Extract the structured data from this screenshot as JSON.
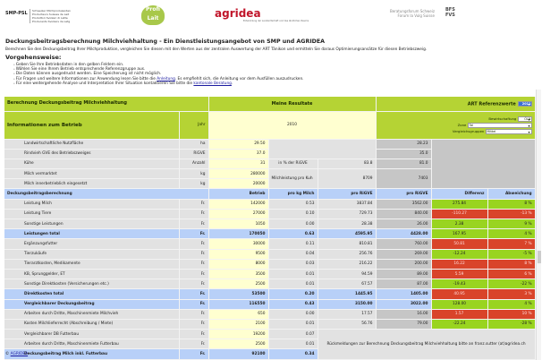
{
  "logos": {
    "snp": "SMP-PSL",
    "snp_sub": [
      "Schweizer Milchproduzenten",
      "Producteurs Suisses de Lait",
      "Produttori Svizzeri di Latte",
      "Producents Svizzers da Latg"
    ],
    "profi": "Profi Lait",
    "agridea": "agridea",
    "agridea_sub": "Entwicklung der Landwirtschaft und des ländlichen Raums",
    "bfs": [
      "Beratungsforum Schweiz",
      "Forum la Vulg Suisse"
    ],
    "bfs_abbr": [
      "BFS",
      "FVS"
    ]
  },
  "title": "Deckungsbeitragsberechnung Milchviehhaltung - Ein Dienstleistungsangebot von SMP und AGRIDEA",
  "description": "Berechnen Sie den Deckungsbeitrag Ihrer Milchproduktion, vergleichen Sie diesen mit den Werten aus der zentralen Auswertung der ART Tänikon und ermitteln Sie daraus Optimierungsansätze für diesen Betriebszweig.",
  "procedure_title": "Vorgehensweise:",
  "bullets": [
    "Geben Sie Ihre Betriebsdaten in den gelben Feldern ein.",
    "Wählen Sie eine Ihrem Betrieb entsprechende Referenzgruppe aus.",
    "Die Daten können ausgedruckt werden. Eine Speicherung ist nicht möglich."
  ],
  "bullet4": {
    "pre": "Für Fragen und weitere Informationen zur Anwendung lesen Sie bitte die ",
    "link": "Anleitung",
    "post": ". Es empfiehlt sich, die Anleitung vor dem Ausfüllen auszudrucken."
  },
  "bullet5": {
    "pre": "Für eine weitergehende Analyse und Interpretation Ihrer Situation kontaktieren Sie bitte die ",
    "link": "kantonale Beratung",
    "post": "."
  },
  "table": {
    "section_title": "Berechnung Deckungsbeitrag Milchviehhaltung",
    "my_results": "Meine Resultate",
    "art_ref": "ART Referenzwerte",
    "art_year": "2011",
    "info_title": "Informationen zum Betrieb",
    "jahr_label": "Jahr",
    "jahr_value": "2010",
    "bewirtschaftung_label": "Bewirtschaftung",
    "bewirtschaftung": "ÖLN",
    "zone_label": "Zone",
    "zone": "Tal",
    "vergleich_label": "Vergleichsgruppen",
    "vergleich": "Mittel",
    "info_rows": [
      {
        "label": "Landwirtschaftliche Nutzfläche",
        "unit": "ha",
        "value": "29.50",
        "ref": "28.23"
      },
      {
        "label": "Rindvieh GVE des Betriebszweiges",
        "unit": "RiGVE",
        "value": "37.0",
        "ref": "35.0"
      },
      {
        "label": "Kühe",
        "unit": "Anzahl",
        "value": "31",
        "extra_label": "in % der RiGVE",
        "extra_value": "83.8",
        "ref": "81.0"
      },
      {
        "label": "Milch vermarktet",
        "unit": "kg",
        "value": "280000",
        "extra_label": "Milchleistung pro Kuh",
        "extra_value": "8709",
        "ref": "7403"
      },
      {
        "label": "Milch innerbetrieblich eingesetzt",
        "unit": "kg",
        "value": "20000"
      }
    ],
    "calc_header": [
      "Deckungsbeitragsberechnung",
      "Betrieb",
      "pro kg Milch",
      "pro RiGVE",
      "pro RiGVE",
      "Differenz",
      "Abweichung"
    ],
    "calc_rows": [
      {
        "label": "Leistung Milch",
        "unit": "Fr.",
        "betrieb": "142000",
        "kg": "0.53",
        "rigve": "3837.84",
        "ref": "3562.00",
        "diff": "275.84",
        "abw": "8 %",
        "status": "good"
      },
      {
        "label": "Leistung Tiere",
        "unit": "Fr.",
        "betrieb": "27000",
        "kg": "0.10",
        "rigve": "729.73",
        "ref": "840.00",
        "diff": "-110.27",
        "abw": "-13 %",
        "status": "bad"
      },
      {
        "label": "Sonstige Leistungen",
        "unit": "Fr.",
        "betrieb": "1050",
        "kg": "0.00",
        "rigve": "28.38",
        "ref": "26.00",
        "diff": "2.38",
        "abw": "9 %",
        "status": "good"
      },
      {
        "label": "Leistungen total",
        "unit": "Fr.",
        "betrieb": "170050",
        "kg": "0.63",
        "rigve": "4595.95",
        "ref": "4428.00",
        "diff": "167.95",
        "abw": "4 %",
        "status": "good",
        "total": true
      },
      {
        "label": "Ergänzungsfutter",
        "unit": "Fr.",
        "betrieb": "30000",
        "kg": "0.11",
        "rigve": "810.81",
        "ref": "760.00",
        "diff": "50.81",
        "abw": "7 %",
        "status": "bad"
      },
      {
        "label": "Tierzukäufe",
        "unit": "Fr.",
        "betrieb": "9500",
        "kg": "0.04",
        "rigve": "256.76",
        "ref": "269.00",
        "diff": "-12.24",
        "abw": "-5 %",
        "status": "good"
      },
      {
        "label": "Tierarztkosten, Medikamente",
        "unit": "Fr.",
        "betrieb": "8000",
        "kg": "0.03",
        "rigve": "216.22",
        "ref": "200.00",
        "diff": "16.22",
        "abw": "8 %",
        "status": "bad"
      },
      {
        "label": "KB, Sprunggelder, ET",
        "unit": "Fr.",
        "betrieb": "3500",
        "kg": "0.01",
        "rigve": "94.59",
        "ref": "89.00",
        "diff": "5.59",
        "abw": "6 %",
        "status": "bad"
      },
      {
        "label": "Sonstige Direktkosten (Versicherungen etc.)",
        "unit": "Fr.",
        "betrieb": "2500",
        "kg": "0.01",
        "rigve": "67.57",
        "ref": "87.00",
        "diff": "-19.43",
        "abw": "-22 %",
        "status": "good"
      },
      {
        "label": "Direktkosten total",
        "unit": "Fr.",
        "betrieb": "53500",
        "kg": "0.20",
        "rigve": "1445.95",
        "ref": "1405.00",
        "diff": "40.95",
        "abw": "3 %",
        "status": "bad",
        "total": true
      },
      {
        "label": "Vergleichbarer Deckungsbeitrag",
        "unit": "Fr.",
        "betrieb": "116550",
        "kg": "0.43",
        "rigve": "3150.00",
        "ref": "3022.00",
        "diff": "128.00",
        "abw": "4 %",
        "status": "good",
        "total": true
      },
      {
        "label": "Arbeiten durch Dritte, Maschinenmiete Milchvieh",
        "unit": "Fr.",
        "betrieb": "650",
        "kg": "0.00",
        "rigve": "17.57",
        "ref": "16.00",
        "diff": "1.57",
        "abw": "10 %",
        "status": "bad"
      },
      {
        "label": "Kosten Milchlieferrecht (Abschreibung / Miete)",
        "unit": "Fr.",
        "betrieb": "2100",
        "kg": "0.01",
        "rigve": "56.76",
        "ref": "79.00",
        "diff": "-22.24",
        "abw": "-28 %",
        "status": "good"
      },
      {
        "label": "Vergleichbarer DB Futterbau",
        "unit": "Fr.",
        "betrieb": "19200",
        "kg": "0.07"
      },
      {
        "label": "Arbeiten durch Dritte, Maschinenmiete Futterbau",
        "unit": "Fr.",
        "betrieb": "2500",
        "kg": "0.01"
      },
      {
        "label": "Deckungsbeitrag Milch inkl. Futterbau",
        "unit": "Fr.",
        "betrieb": "92100",
        "kg": "0.34",
        "total": true
      }
    ],
    "feedback": "Rückmeldungen zur Berechnung Deckungsbeitrag Milchviehhaltung bitte an franz.sutter (at)agridea.ch"
  },
  "footer": {
    "copyright": "©",
    "link": "AGRIDEA"
  },
  "colors": {
    "green_header": "#b5d334",
    "input_yellow": "#ffffd0",
    "total_blue": "#b8d0f8",
    "better": "#99d420",
    "worse": "#d9442a"
  }
}
